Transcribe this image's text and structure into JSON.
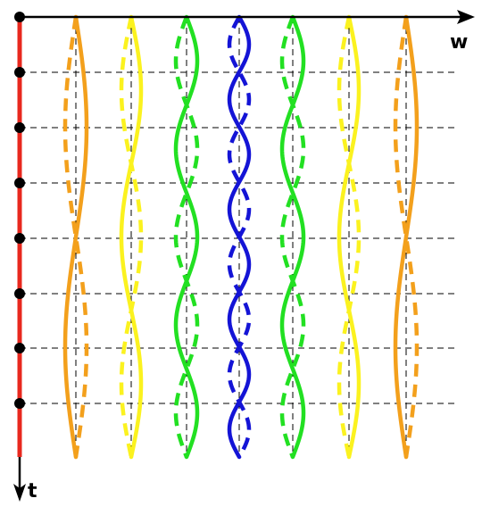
{
  "axes": {
    "horizontal_label": "w",
    "vertical_label": "t"
  },
  "colors": {
    "axis": "#000000",
    "time_line": "#e8281e",
    "grid": "#000000",
    "marker": "#000000",
    "dashed_overlay": "#ffffff"
  },
  "time_markers": {
    "count": 8
  },
  "wave_pairs": [
    {
      "color": "#f3a01c",
      "periods": 1.0,
      "side": "left"
    },
    {
      "color": "#fbf21f",
      "periods": 1.5,
      "side": "left"
    },
    {
      "color": "#22e022",
      "periods": 2.5,
      "side": "left"
    },
    {
      "color": "#1414d6",
      "periods": 4.0,
      "side": "center"
    },
    {
      "color": "#22e022",
      "periods": 2.5,
      "side": "right"
    },
    {
      "color": "#fbf21f",
      "periods": 1.5,
      "side": "right"
    },
    {
      "color": "#f3a01c",
      "periods": 1.0,
      "side": "right"
    }
  ]
}
